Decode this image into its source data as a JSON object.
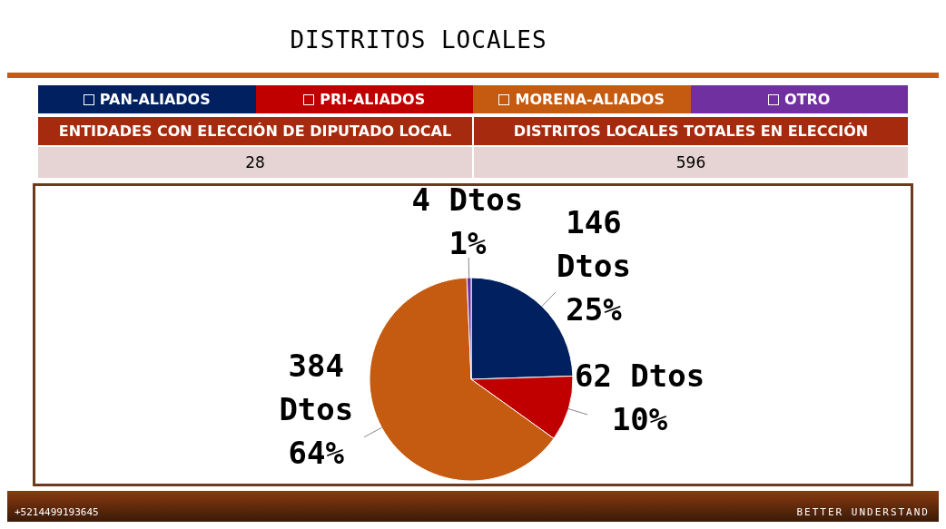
{
  "chart_data": {
    "type": "pie",
    "title": "DISTRITOS LOCALES",
    "categories": [
      "PAN-ALIADOS",
      "PRI-ALIADOS",
      "MORENA-ALIADOS",
      "OTRO"
    ],
    "values": [
      146,
      62,
      384,
      4
    ],
    "colors": [
      "#002060",
      "#c00000",
      "#c55a11",
      "#7030a0"
    ],
    "value_labels": [
      "146 Dtos 25%",
      "62 Dtos 10%",
      "384 Dtos 64%",
      "4 Dtos 1%"
    ],
    "legend": "top",
    "annotations": [
      "ENTIDADES CON ELECCIÓN DE DIPUTADO LOCAL",
      "28",
      "DISTRITOS LOCALES TOTALES EN ELECCIÓN",
      "596",
      "+5214499193645",
      "BETTER UNDERSTAND"
    ]
  }
}
